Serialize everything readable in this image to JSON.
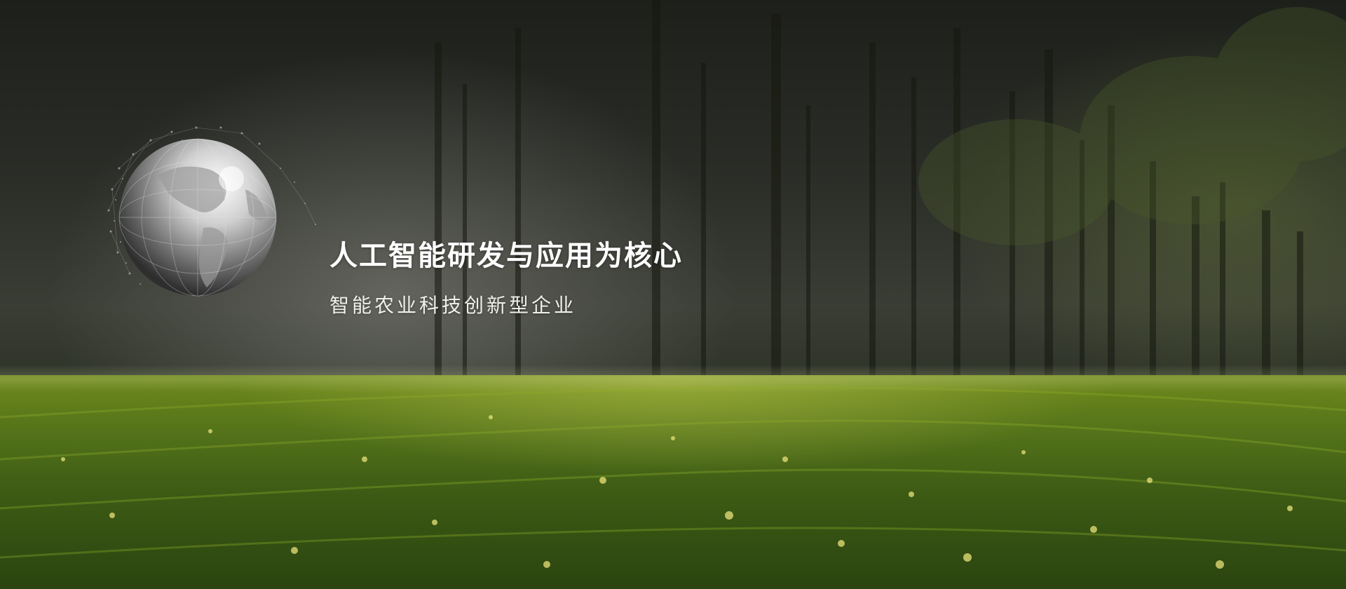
{
  "banner": {
    "headline": "人工智能研发与应用为核心",
    "subline": "智能农业科技创新型企业"
  },
  "colors": {
    "text": "#ffffff",
    "grass": "#55741a",
    "forest": "#2a2d27"
  },
  "icons": {
    "globe": "globe-icon"
  }
}
